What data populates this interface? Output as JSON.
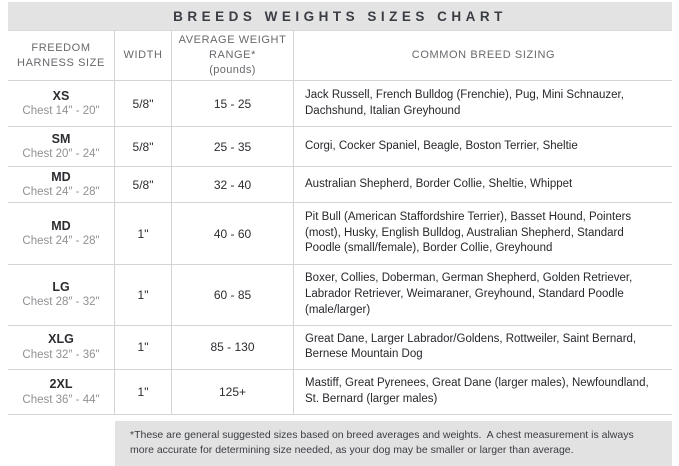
{
  "title": "BREEDS WEIGHTS SIZES CHART",
  "table": {
    "headers": {
      "size": "FREEDOM HARNESS SIZE",
      "width": "WIDTH",
      "weight": "AVERAGE WEIGHT RANGE*",
      "weight_unit": "(pounds)",
      "breeds": "COMMON BREED SIZING"
    },
    "rows": [
      {
        "size": "XS",
        "chest": "Chest 14\" - 20\"",
        "width": "5/8\"",
        "weight": "15 - 25",
        "breeds": "Jack Russell, French Bulldog (Frenchie), Pug, Mini Schnauzer, Dachshund, Italian Greyhound"
      },
      {
        "size": "SM",
        "chest": "Chest 20″ - 24\"",
        "width": "5/8\"",
        "weight": "25 - 35",
        "breeds": "Corgi, Cocker Spaniel, Beagle, Boston Terrier, Sheltie"
      },
      {
        "size": "MD",
        "chest": "Chest 24″ - 28\"",
        "width": "5/8\"",
        "weight": "32 - 40",
        "breeds": "Australian Shepherd, Border Collie, Sheltie, Whippet"
      },
      {
        "size": "MD",
        "chest": "Chest 24″ - 28\"",
        "width": "1\"",
        "weight": "40 - 60",
        "breeds": "Pit Bull (American Staffordshire Terrier), Basset Hound, Pointers (most), Husky, English Bulldog, Australian Shepherd, Standard Poodle (small/female), Border Collie, Greyhound"
      },
      {
        "size": "LG",
        "chest": "Chest 28″ - 32\"",
        "width": "1\"",
        "weight": "60 - 85",
        "breeds": "Boxer, Collies, Doberman, German Shepherd, Golden Retriever, Labrador Retriever, Weimaraner, Greyhound, Standard Poodle (male/larger)"
      },
      {
        "size": "XLG",
        "chest": "Chest 32″ - 36\"",
        "width": "1\"",
        "weight": "85 - 130",
        "breeds": "Great Dane, Larger Labrador/Goldens, Rottweiler, Saint Bernard, Bernese Mountain Dog"
      },
      {
        "size": "2XL",
        "chest": "Chest 36″ - 44\"",
        "width": "1\"",
        "weight": "125+",
        "breeds": "Mastiff, Great Pyrenees, Great Dane (larger males), Newfoundland, St. Bernard (larger males)"
      }
    ]
  },
  "footnote": "*These are general suggested sizes based on breed averages and weights.  A chest measurement is always more accurate for determining size needed, as your dog may be smaller or larger than average.",
  "colors": {
    "title_bar_bg": "#e3e3e3",
    "title_text": "#3a3d43",
    "header_text": "#67696d",
    "body_text": "#26282c",
    "muted_text": "#8f9194",
    "border": "#d4d4d4",
    "footnote_bg": "#e2e2e2"
  }
}
